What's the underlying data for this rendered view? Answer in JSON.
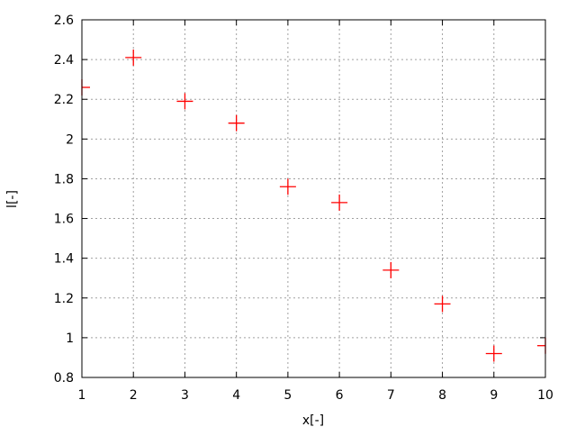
{
  "chart_data": {
    "type": "scatter",
    "xlabel": "x[-]",
    "ylabel": "l[-]",
    "xlim": [
      1,
      10
    ],
    "ylim": [
      0.8,
      2.6
    ],
    "xticks": [
      "1",
      "2",
      "3",
      "4",
      "5",
      "6",
      "7",
      "8",
      "9",
      "10"
    ],
    "yticks": [
      "0.8",
      "1",
      "1.2",
      "1.4",
      "1.6",
      "1.8",
      "2",
      "2.2",
      "2.4",
      "2.6"
    ],
    "grid": true,
    "marker": "plus",
    "color": "#ff0000",
    "points": [
      {
        "x": 1,
        "y": 2.26
      },
      {
        "x": 2,
        "y": 2.41
      },
      {
        "x": 3,
        "y": 2.19
      },
      {
        "x": 4,
        "y": 2.08
      },
      {
        "x": 5,
        "y": 1.76
      },
      {
        "x": 6,
        "y": 1.68
      },
      {
        "x": 7,
        "y": 1.34
      },
      {
        "x": 8,
        "y": 1.17
      },
      {
        "x": 9,
        "y": 0.92
      },
      {
        "x": 10,
        "y": 0.96
      }
    ]
  }
}
